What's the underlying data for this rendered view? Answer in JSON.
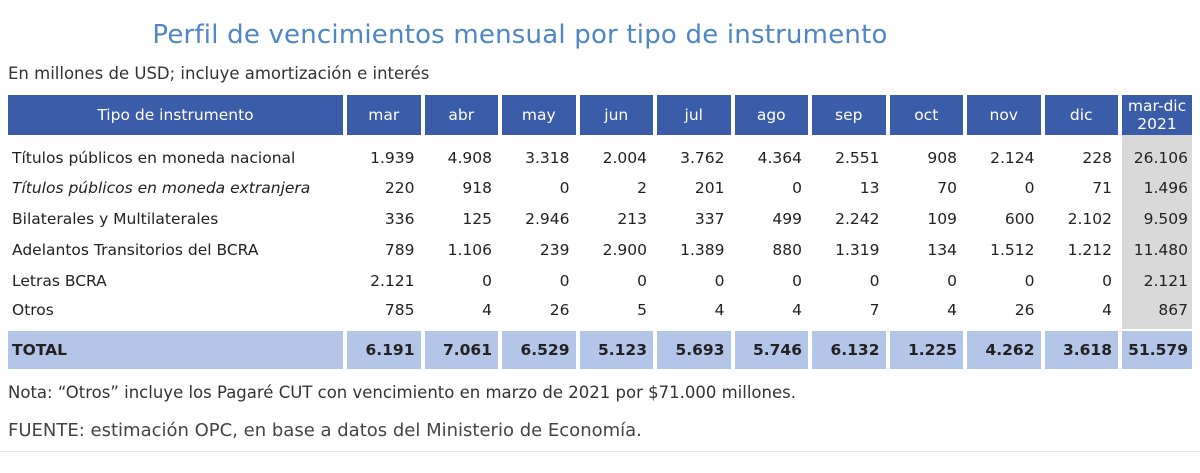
{
  "title": "Perfil de vencimientos mensual por tipo de instrumento",
  "subtitle": "En millones de USD; incluye amortización e interés",
  "note": "Nota: “Otros” incluye los Pagaré CUT con vencimiento en marzo de 2021 por $71.000 millones.",
  "source": "FUENTE: estimación OPC, en base a datos del Ministerio de Economía.",
  "colors": {
    "header": "#3b5ca8",
    "total_row": "#b4c6e7",
    "total_col": "#d9d9d9",
    "title": "#4f86c6"
  },
  "chart_data": {
    "type": "table",
    "title": "Perfil de vencimientos mensual por tipo de instrumento",
    "subtitle": "En millones de USD; incluye amortización e interés",
    "header": {
      "label": "Tipo de instrumento",
      "months": [
        "mar",
        "abr",
        "may",
        "jun",
        "jul",
        "ago",
        "sep",
        "oct",
        "nov",
        "dic"
      ],
      "total_line1": "mar-dic",
      "total_line2": "2021"
    },
    "rows": [
      {
        "name": "Títulos públicos en moneda nacional",
        "values": [
          "1.939",
          "4.908",
          "3.318",
          "2.004",
          "3.762",
          "4.364",
          "2.551",
          "908",
          "2.124",
          "228"
        ],
        "total": "26.106"
      },
      {
        "name": "Títulos públicos en moneda extranjera",
        "values": [
          "220",
          "918",
          "0",
          "2",
          "201",
          "0",
          "13",
          "70",
          "0",
          "71"
        ],
        "total": "1.496"
      },
      {
        "name": "Bilaterales y Multilaterales",
        "values": [
          "336",
          "125",
          "2.946",
          "213",
          "337",
          "499",
          "2.242",
          "109",
          "600",
          "2.102"
        ],
        "total": "9.509"
      },
      {
        "name": "Adelantos Transitorios del BCRA",
        "values": [
          "789",
          "1.106",
          "239",
          "2.900",
          "1.389",
          "880",
          "1.319",
          "134",
          "1.512",
          "1.212"
        ],
        "total": "11.480"
      },
      {
        "name": "Letras BCRA",
        "values": [
          "2.121",
          "0",
          "0",
          "0",
          "0",
          "0",
          "0",
          "0",
          "0",
          "0"
        ],
        "total": "2.121"
      },
      {
        "name": "Otros",
        "values": [
          "785",
          "4",
          "26",
          "5",
          "4",
          "4",
          "7",
          "4",
          "26",
          "4"
        ],
        "total": "867"
      }
    ],
    "total_row": {
      "name": "TOTAL",
      "values": [
        "6.191",
        "7.061",
        "6.529",
        "5.123",
        "5.693",
        "5.746",
        "6.132",
        "1.225",
        "4.262",
        "3.618"
      ],
      "total": "51.579"
    }
  }
}
